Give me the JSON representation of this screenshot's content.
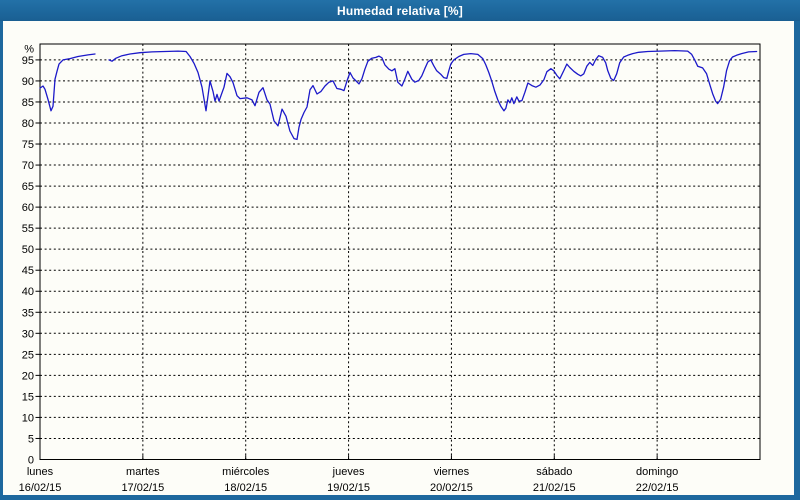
{
  "window": {
    "title": "Humedad relativa [%]"
  },
  "colors": {
    "frame_blue": "#1e689e",
    "title_text": "#ffffff",
    "plot_background": "#fdfdf8",
    "axis_and_grid": "#000000",
    "line_blue": "#1c19c9"
  },
  "chart_data": {
    "type": "line",
    "title": "Humedad relativa [%]",
    "y_unit_label": "%",
    "grid": true,
    "legend": "none",
    "y_axis": {
      "min": 0,
      "max_tick_label": 95,
      "tick_step": 5,
      "plot_top_value": 98.8,
      "gridline_style": "dashed"
    },
    "x_axis": {
      "gridline_style": "dashed",
      "tick_labels": [
        {
          "name": "lunes",
          "date": "16/02/15"
        },
        {
          "name": "martes",
          "date": "17/02/15"
        },
        {
          "name": "miércoles",
          "date": "18/02/15"
        },
        {
          "name": "jueves",
          "date": "19/02/15"
        },
        {
          "name": "viernes",
          "date": "20/02/15"
        },
        {
          "name": "sábado",
          "date": "21/02/15"
        },
        {
          "name": "domingo",
          "date": "22/02/15"
        }
      ]
    },
    "series": [
      {
        "name": "Humedad relativa [%]",
        "x_unit": "days (0 = lunes 16/02/15 00:00, 7 = end of domingo 22/02/15)",
        "points": [
          [
            0,
            88.3
          ],
          [
            0.029,
            88.8
          ],
          [
            0.049,
            88
          ],
          [
            0.078,
            85.6
          ],
          [
            0.107,
            82.9
          ],
          [
            0.126,
            84
          ],
          [
            0.146,
            90.4
          ],
          [
            0.165,
            92.3
          ],
          [
            0.185,
            94
          ],
          [
            0.224,
            95
          ],
          [
            0.292,
            95.3
          ],
          [
            0.369,
            95.8
          ],
          [
            0.467,
            96.2
          ],
          [
            0.535,
            96.4
          ],
          null,
          [
            0.671,
            95
          ],
          [
            0.7,
            94.7
          ],
          [
            0.739,
            95.4
          ],
          [
            0.797,
            96
          ],
          [
            0.875,
            96.4
          ],
          [
            0.972,
            96.7
          ],
          [
            1.089,
            96.9
          ],
          [
            1.215,
            97
          ],
          [
            1.342,
            97.1
          ],
          [
            1.42,
            97
          ],
          [
            1.458,
            95.8
          ],
          [
            1.497,
            94.2
          ],
          [
            1.536,
            92
          ],
          [
            1.575,
            88.5
          ],
          [
            1.614,
            82.9
          ],
          [
            1.653,
            90
          ],
          [
            1.682,
            87.5
          ],
          [
            1.701,
            85.2
          ],
          [
            1.721,
            86.8
          ],
          [
            1.74,
            85.2
          ],
          [
            1.789,
            88.5
          ],
          [
            1.818,
            91.8
          ],
          [
            1.847,
            91
          ],
          [
            1.876,
            89.6
          ],
          [
            1.915,
            86.5
          ],
          [
            1.944,
            85.8
          ],
          [
            2.013,
            86
          ],
          [
            2.061,
            85.5
          ],
          [
            2.09,
            84.1
          ],
          [
            2.129,
            87.3
          ],
          [
            2.168,
            88.4
          ],
          [
            2.207,
            85.5
          ],
          [
            2.236,
            84.5
          ],
          [
            2.275,
            80.5
          ],
          [
            2.314,
            79.3
          ],
          [
            2.353,
            83.3
          ],
          [
            2.392,
            81.6
          ],
          [
            2.43,
            78.1
          ],
          [
            2.469,
            76.3
          ],
          [
            2.499,
            76.1
          ],
          [
            2.518,
            79
          ],
          [
            2.538,
            80.9
          ],
          [
            2.567,
            82.5
          ],
          [
            2.596,
            83.8
          ],
          [
            2.625,
            87.9
          ],
          [
            2.654,
            88.9
          ],
          [
            2.693,
            86.9
          ],
          [
            2.732,
            87.5
          ],
          [
            2.771,
            88.8
          ],
          [
            2.81,
            89.7
          ],
          [
            2.849,
            90
          ],
          [
            2.887,
            88.2
          ],
          [
            2.926,
            88
          ],
          [
            2.956,
            87.7
          ],
          [
            2.985,
            90
          ],
          [
            3.014,
            92
          ],
          [
            3.043,
            90.7
          ],
          [
            3.072,
            90
          ],
          [
            3.101,
            89.3
          ],
          [
            3.13,
            90.5
          ],
          [
            3.159,
            92.8
          ],
          [
            3.188,
            94.7
          ],
          [
            3.227,
            95.4
          ],
          [
            3.266,
            95.6
          ],
          [
            3.295,
            95.9
          ],
          [
            3.324,
            95.5
          ],
          [
            3.353,
            93.8
          ],
          [
            3.392,
            92.8
          ],
          [
            3.421,
            92.4
          ],
          [
            3.45,
            92.9
          ],
          [
            3.479,
            89.7
          ],
          [
            3.518,
            88.8
          ],
          [
            3.547,
            90.4
          ],
          [
            3.576,
            92.3
          ],
          [
            3.615,
            90.4
          ],
          [
            3.644,
            89.7
          ],
          [
            3.683,
            90.1
          ],
          [
            3.712,
            91.2
          ],
          [
            3.741,
            92.9
          ],
          [
            3.77,
            94.5
          ],
          [
            3.799,
            95
          ],
          [
            3.829,
            93.6
          ],
          [
            3.857,
            92.4
          ],
          [
            3.896,
            91.6
          ],
          [
            3.925,
            90.8
          ],
          [
            3.955,
            90.6
          ],
          [
            3.975,
            92.5
          ],
          [
            3.994,
            94
          ],
          [
            4.023,
            95
          ],
          [
            4.072,
            95.8
          ],
          [
            4.12,
            96.3
          ],
          [
            4.188,
            96.5
          ],
          [
            4.256,
            96.3
          ],
          [
            4.305,
            95.3
          ],
          [
            4.334,
            93.8
          ],
          [
            4.363,
            92
          ],
          [
            4.392,
            90
          ],
          [
            4.422,
            87.5
          ],
          [
            4.451,
            85.5
          ],
          [
            4.48,
            84
          ],
          [
            4.51,
            82.9
          ],
          [
            4.529,
            83.5
          ],
          [
            4.549,
            85.5
          ],
          [
            4.568,
            84.8
          ],
          [
            4.587,
            86
          ],
          [
            4.607,
            84.6
          ],
          [
            4.636,
            86.2
          ],
          [
            4.656,
            85.2
          ],
          [
            4.685,
            85.3
          ],
          [
            4.714,
            87.3
          ],
          [
            4.743,
            89.5
          ],
          [
            4.782,
            88.9
          ],
          [
            4.821,
            88.5
          ],
          [
            4.86,
            89
          ],
          [
            4.899,
            90.3
          ],
          [
            4.928,
            92.2
          ],
          [
            4.967,
            92.9
          ],
          [
            4.996,
            92.4
          ],
          [
            5.025,
            91.3
          ],
          [
            5.054,
            90.5
          ],
          [
            5.093,
            92.5
          ],
          [
            5.122,
            94
          ],
          [
            5.151,
            93.2
          ],
          [
            5.19,
            92.3
          ],
          [
            5.228,
            91.6
          ],
          [
            5.258,
            91.2
          ],
          [
            5.287,
            91.7
          ],
          [
            5.316,
            93.5
          ],
          [
            5.345,
            94.4
          ],
          [
            5.374,
            93.7
          ],
          [
            5.403,
            95.1
          ],
          [
            5.432,
            96
          ],
          [
            5.471,
            95.6
          ],
          [
            5.5,
            94.3
          ],
          [
            5.52,
            92.4
          ],
          [
            5.549,
            90.6
          ],
          [
            5.578,
            90.1
          ],
          [
            5.607,
            91.7
          ],
          [
            5.636,
            94.3
          ],
          [
            5.675,
            95.7
          ],
          [
            5.714,
            96.1
          ],
          [
            5.762,
            96.5
          ],
          [
            5.821,
            96.8
          ],
          [
            5.908,
            97
          ],
          [
            6.025,
            97.1
          ],
          [
            6.171,
            97.2
          ],
          [
            6.297,
            97.1
          ],
          [
            6.336,
            96.3
          ],
          [
            6.365,
            95
          ],
          [
            6.394,
            93.5
          ],
          [
            6.442,
            93.1
          ],
          [
            6.481,
            91.7
          ],
          [
            6.51,
            89.3
          ],
          [
            6.539,
            87
          ],
          [
            6.568,
            85.2
          ],
          [
            6.588,
            84.6
          ],
          [
            6.617,
            85.6
          ],
          [
            6.646,
            88.5
          ],
          [
            6.675,
            92.5
          ],
          [
            6.704,
            94.8
          ],
          [
            6.733,
            95.7
          ],
          [
            6.772,
            96.1
          ],
          [
            6.821,
            96.5
          ],
          [
            6.889,
            96.9
          ],
          [
            6.967,
            97
          ]
        ]
      }
    ]
  }
}
